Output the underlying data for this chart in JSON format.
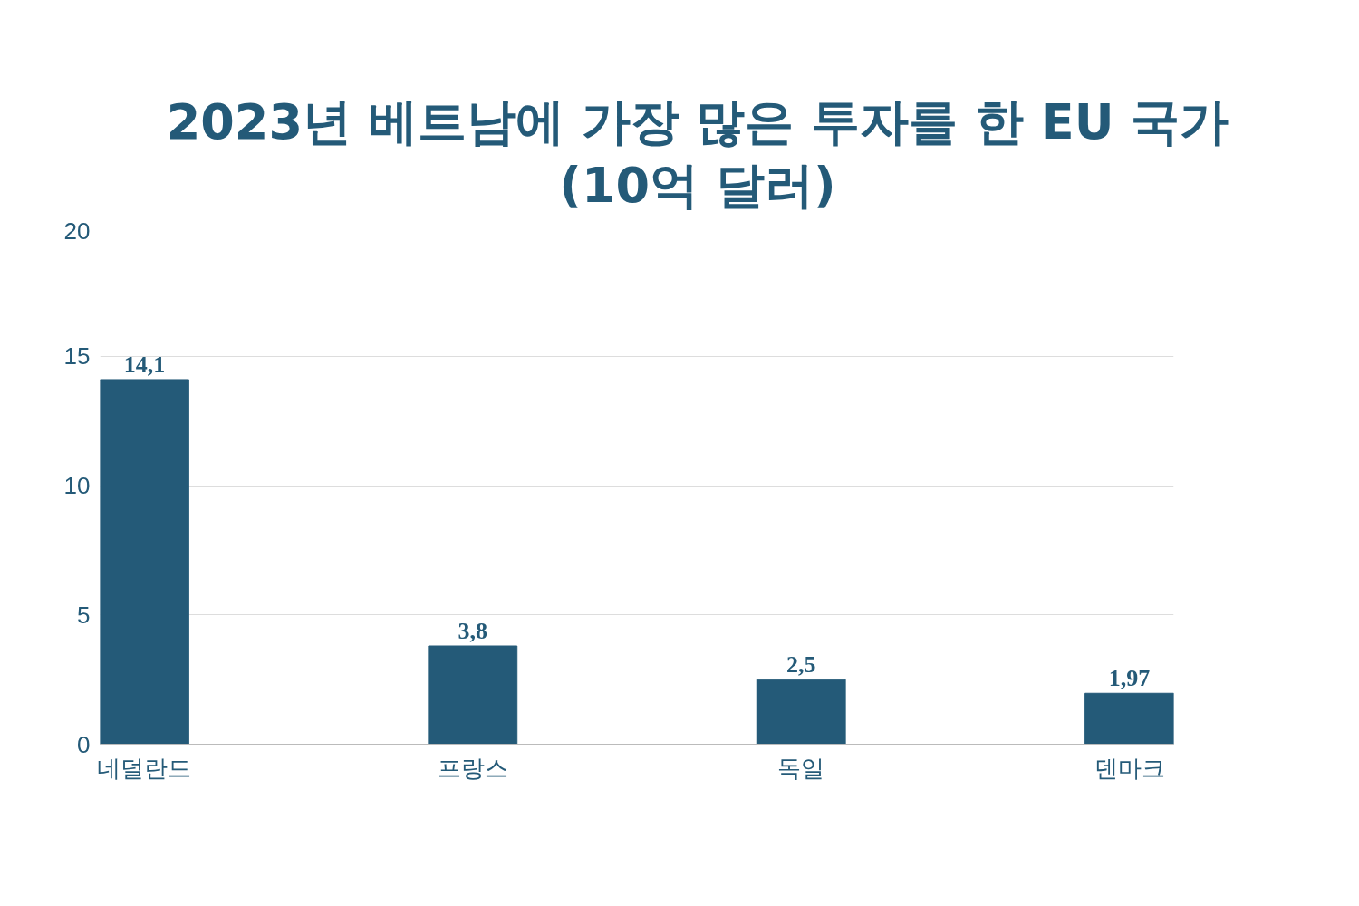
{
  "chart_data": {
    "type": "bar",
    "title": "2023년 베트남에 가장 많은 투자를 한 EU 국가 (10억 달러)",
    "categories": [
      "네덜란드",
      "프랑스",
      "독일",
      "덴마크"
    ],
    "values": [
      14.1,
      3.8,
      2.5,
      1.97
    ],
    "value_labels": [
      "14,1",
      "3,8",
      "2,5",
      "1,97"
    ],
    "color": "#245a78",
    "ylim": [
      0,
      20
    ],
    "yticks": [
      0,
      5,
      10,
      15,
      20
    ],
    "grid": "y"
  }
}
